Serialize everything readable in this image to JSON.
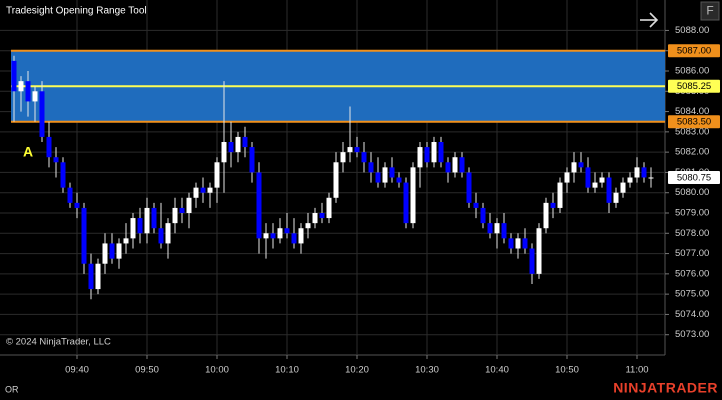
{
  "chart_data": {
    "type": "candlestick",
    "title": "Tradesight Opening Range Tool",
    "copyright": "© 2024 NinjaTrader, LLC",
    "footer_left": "OR",
    "brand": "NINJATRADER",
    "button": "F",
    "x": [
      "09:31",
      "09:32",
      "09:33",
      "09:34",
      "09:35",
      "09:36",
      "09:37",
      "09:38",
      "09:39",
      "09:40",
      "09:41",
      "09:42",
      "09:43",
      "09:44",
      "09:45",
      "09:46",
      "09:47",
      "09:48",
      "09:49",
      "09:50",
      "09:51",
      "09:52",
      "09:53",
      "09:54",
      "09:55",
      "09:56",
      "09:57",
      "09:58",
      "09:59",
      "10:00",
      "10:01",
      "10:02",
      "10:03",
      "10:04",
      "10:05",
      "10:06",
      "10:07",
      "10:08",
      "10:09",
      "10:10",
      "10:11",
      "10:12",
      "10:13",
      "10:14",
      "10:15",
      "10:16",
      "10:17",
      "10:18",
      "10:19",
      "10:20",
      "10:21",
      "10:22",
      "10:23",
      "10:24",
      "10:25",
      "10:26",
      "10:27",
      "10:28",
      "10:29",
      "10:30",
      "10:31",
      "10:32",
      "10:33",
      "10:34",
      "10:35",
      "10:36",
      "10:37",
      "10:38",
      "10:39",
      "10:40",
      "10:41",
      "10:42",
      "10:43",
      "10:44",
      "10:45",
      "10:46",
      "10:47",
      "10:48",
      "10:49",
      "10:50",
      "10:51",
      "10:52",
      "10:53",
      "10:54",
      "10:55",
      "10:56",
      "10:57",
      "10:58",
      "10:59",
      "11:00",
      "11:01",
      "11:02"
    ],
    "open": [
      5086.5,
      5085.0,
      5085.5,
      5084.5,
      5085.0,
      5082.75,
      5081.75,
      5081.5,
      5080.25,
      5079.5,
      5079.25,
      5076.5,
      5075.25,
      5076.5,
      5077.5,
      5076.75,
      5077.5,
      5077.75,
      5078.75,
      5078.0,
      5079.25,
      5078.25,
      5077.5,
      5078.5,
      5079.25,
      5079.0,
      5079.75,
      5080.25,
      5080.0,
      5080.25,
      5081.5,
      5082.5,
      5082.0,
      5082.75,
      5082.25,
      5081.0,
      5077.75,
      5078.0,
      5077.75,
      5078.25,
      5078.0,
      5077.5,
      5078.25,
      5078.5,
      5079.0,
      5078.75,
      5079.75,
      5081.5,
      5082.0,
      5082.25,
      5082.0,
      5081.5,
      5081.0,
      5080.5,
      5081.25,
      5080.75,
      5080.5,
      5078.5,
      5081.25,
      5082.25,
      5081.5,
      5082.5,
      5081.5,
      5081.0,
      5081.75,
      5081.0,
      5079.5,
      5079.25,
      5078.5,
      5078.0,
      5078.5,
      5077.75,
      5077.25,
      5077.75,
      5077.25,
      5076.0,
      5078.25,
      5079.5,
      5079.25,
      5080.5,
      5081.0,
      5081.5,
      5081.25,
      5080.25,
      5080.5,
      5080.75,
      5079.5,
      5080.0,
      5080.5,
      5080.75,
      5081.25,
      5080.75
    ],
    "high": [
      5086.75,
      5085.75,
      5086.0,
      5085.25,
      5085.5,
      5083.5,
      5082.25,
      5081.75,
      5080.5,
      5080.0,
      5079.5,
      5077.0,
      5076.75,
      5078.0,
      5078.0,
      5077.75,
      5078.5,
      5079.0,
      5079.25,
      5079.75,
      5079.5,
      5079.5,
      5078.75,
      5079.75,
      5079.75,
      5080.0,
      5080.5,
      5080.75,
      5080.5,
      5081.75,
      5085.5,
      5083.5,
      5083.0,
      5083.25,
      5082.5,
      5081.5,
      5078.5,
      5078.5,
      5078.75,
      5079.0,
      5078.75,
      5078.5,
      5079.0,
      5079.25,
      5079.5,
      5080.0,
      5082.0,
      5082.5,
      5084.25,
      5082.75,
      5082.5,
      5082.0,
      5081.75,
      5081.5,
      5081.75,
      5081.0,
      5080.75,
      5081.5,
      5082.5,
      5082.5,
      5082.75,
      5082.75,
      5081.75,
      5082.0,
      5082.0,
      5081.25,
      5080.0,
      5079.5,
      5079.0,
      5078.75,
      5079.0,
      5078.0,
      5078.0,
      5078.25,
      5077.5,
      5078.5,
      5079.75,
      5080.0,
      5080.75,
      5081.25,
      5082.0,
      5082.0,
      5081.75,
      5081.0,
      5081.0,
      5081.0,
      5080.25,
      5080.75,
      5081.0,
      5081.75,
      5081.5,
      5081.25
    ],
    "low": [
      5083.5,
      5084.0,
      5083.75,
      5083.5,
      5082.5,
      5081.25,
      5080.75,
      5080.0,
      5079.25,
      5078.75,
      5076.0,
      5074.75,
      5075.0,
      5076.0,
      5076.5,
      5076.25,
      5077.0,
      5077.25,
      5077.5,
      5077.5,
      5078.0,
      5077.25,
      5076.75,
      5078.0,
      5078.5,
      5078.25,
      5079.25,
      5079.5,
      5079.25,
      5079.5,
      5080.0,
      5081.25,
      5081.5,
      5081.75,
      5080.5,
      5077.0,
      5076.75,
      5077.25,
      5077.5,
      5077.75,
      5077.25,
      5077.0,
      5077.75,
      5078.25,
      5078.5,
      5078.5,
      5079.5,
      5081.0,
      5081.5,
      5081.75,
      5081.0,
      5080.5,
      5080.25,
      5080.25,
      5080.5,
      5080.25,
      5078.25,
      5078.25,
      5080.25,
      5081.25,
      5081.25,
      5081.25,
      5080.5,
      5080.75,
      5080.75,
      5079.25,
      5078.75,
      5078.25,
      5077.75,
      5077.25,
      5077.5,
      5077.0,
      5076.75,
      5077.0,
      5075.5,
      5075.75,
      5078.0,
      5078.75,
      5079.0,
      5080.0,
      5080.5,
      5081.0,
      5080.0,
      5080.0,
      5080.25,
      5079.0,
      5079.25,
      5079.75,
      5080.25,
      5080.5,
      5080.5,
      5080.25
    ],
    "close": [
      5085.0,
      5085.5,
      5084.5,
      5085.0,
      5082.75,
      5081.75,
      5081.5,
      5080.25,
      5079.5,
      5079.25,
      5076.5,
      5075.25,
      5076.5,
      5077.5,
      5076.75,
      5077.5,
      5077.75,
      5078.75,
      5078.0,
      5079.25,
      5078.25,
      5077.5,
      5078.5,
      5079.25,
      5079.0,
      5079.75,
      5080.25,
      5080.0,
      5080.25,
      5081.5,
      5082.5,
      5082.0,
      5082.75,
      5082.25,
      5081.0,
      5077.75,
      5078.0,
      5077.75,
      5078.25,
      5078.0,
      5077.5,
      5078.25,
      5078.5,
      5079.0,
      5078.75,
      5079.75,
      5081.5,
      5082.0,
      5082.25,
      5082.0,
      5081.5,
      5081.0,
      5080.5,
      5081.25,
      5080.75,
      5080.5,
      5078.5,
      5081.25,
      5082.25,
      5081.5,
      5082.5,
      5081.5,
      5081.0,
      5081.75,
      5081.0,
      5079.5,
      5079.25,
      5078.5,
      5078.0,
      5078.5,
      5077.75,
      5077.25,
      5077.75,
      5077.25,
      5076.0,
      5078.25,
      5079.5,
      5079.25,
      5080.5,
      5081.0,
      5081.5,
      5081.25,
      5080.25,
      5080.5,
      5080.75,
      5079.5,
      5080.0,
      5080.5,
      5080.75,
      5081.25,
      5080.75,
      5080.75
    ],
    "up_color": "#ffffff",
    "down_color": "#0000ff",
    "xlim": [
      "09:29",
      "11:04"
    ],
    "xticks": [
      "09:40",
      "09:50",
      "10:00",
      "10:10",
      "10:20",
      "10:30",
      "10:40",
      "10:50",
      "11:00"
    ],
    "ylim": [
      5072,
      5089.5
    ],
    "yticks": [
      {
        "value": 5073,
        "label": "5073.00"
      },
      {
        "value": 5074,
        "label": "5074.00"
      },
      {
        "value": 5075,
        "label": "5075.00"
      },
      {
        "value": 5076,
        "label": "5076.00"
      },
      {
        "value": 5077,
        "label": "5077.00"
      },
      {
        "value": 5078,
        "label": "5078.00"
      },
      {
        "value": 5079,
        "label": "5079.00"
      },
      {
        "value": 5080,
        "label": "5080.00"
      },
      {
        "value": 5081,
        "label": "5081.00"
      },
      {
        "value": 5082,
        "label": "5082.00"
      },
      {
        "value": 5083,
        "label": "5083.00"
      },
      {
        "value": 5084,
        "label": "5084.00"
      },
      {
        "value": 5085,
        "label": "5085.00"
      },
      {
        "value": 5086,
        "label": "5086.00"
      },
      {
        "value": 5087,
        "label": "5087.00"
      },
      {
        "value": 5088,
        "label": "5088.00"
      }
    ],
    "grid": true,
    "opening_range": {
      "high": 5087,
      "high_label": "5087.00",
      "mid": 5085.25,
      "mid_label": "5085.25",
      "low": 5083.5,
      "low_label": "5083.50",
      "fill": "#1f6cbd",
      "edge_color": "#f0901c",
      "mid_color": "#ffff55"
    },
    "last_price": {
      "value": 5080.75,
      "label": "5080.75"
    },
    "annotations": [
      {
        "text": "A",
        "x": "09:33",
        "color": "#ffff33"
      }
    ]
  }
}
